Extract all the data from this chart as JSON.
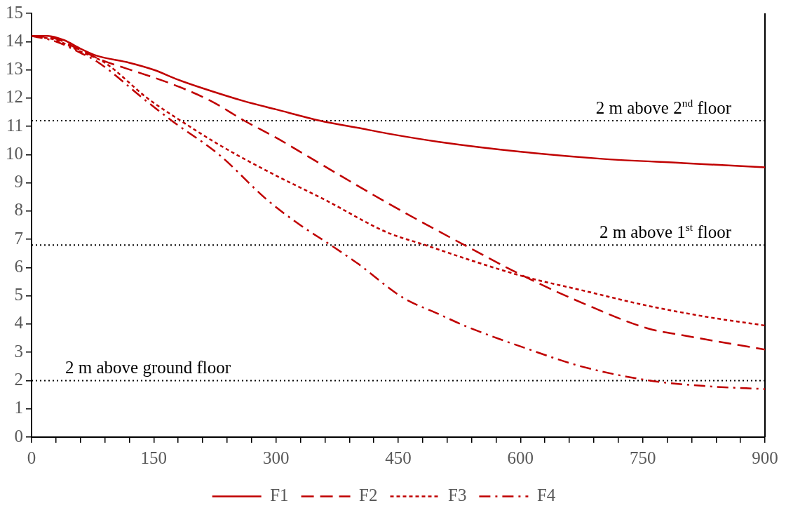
{
  "chart_data": {
    "type": "line",
    "xlim": [
      0,
      900
    ],
    "ylim": [
      0,
      15
    ],
    "xticks": [
      0,
      {
        "value": 30,
        "label": null
      },
      {
        "value": 60,
        "label": null
      },
      {
        "value": 90,
        "label": null
      },
      {
        "value": 120,
        "label": null
      },
      150,
      {
        "value": 180,
        "label": null
      },
      {
        "value": 210,
        "label": null
      },
      {
        "value": 240,
        "label": null
      },
      {
        "value": 270,
        "label": null
      },
      300,
      {
        "value": 330,
        "label": null
      },
      {
        "value": 360,
        "label": null
      },
      {
        "value": 390,
        "label": null
      },
      {
        "value": 420,
        "label": null
      },
      450,
      {
        "value": 480,
        "label": null
      },
      {
        "value": 510,
        "label": null
      },
      {
        "value": 540,
        "label": null
      },
      {
        "value": 570,
        "label": null
      },
      600,
      {
        "value": 630,
        "label": null
      },
      {
        "value": 660,
        "label": null
      },
      {
        "value": 690,
        "label": null
      },
      {
        "value": 720,
        "label": null
      },
      750,
      {
        "value": 780,
        "label": null
      },
      {
        "value": 810,
        "label": null
      },
      {
        "value": 840,
        "label": null
      },
      {
        "value": 870,
        "label": null
      },
      900
    ],
    "yticks": [
      0,
      1,
      2,
      3,
      4,
      5,
      6,
      7,
      8,
      9,
      10,
      11,
      12,
      13,
      14,
      15
    ],
    "grid": false,
    "legend": "bottom",
    "marker": "none",
    "series": [
      {
        "name": "F1",
        "color": "#c00000",
        "line_style": "solid",
        "x": [
          0,
          20,
          40,
          60,
          80,
          120,
          150,
          180,
          210,
          260,
          300,
          354,
          400,
          436,
          500,
          600,
          700,
          800,
          900
        ],
        "values": [
          14.2,
          14.2,
          14.05,
          13.75,
          13.5,
          13.25,
          13.0,
          12.65,
          12.35,
          11.9,
          11.6,
          11.2,
          10.95,
          10.75,
          10.45,
          10.1,
          9.85,
          9.7,
          9.55
        ]
      },
      {
        "name": "F2",
        "color": "#c00000",
        "line_style": "dashed",
        "x": [
          0,
          30,
          60,
          90,
          113,
          172,
          220,
          261,
          300,
          350,
          436,
          531,
          606,
          675,
          756,
          800,
          900
        ],
        "values": [
          14.2,
          14.1,
          13.7,
          13.3,
          13.08,
          12.5,
          11.9,
          11.2,
          10.6,
          9.75,
          8.3,
          6.8,
          5.67,
          4.76,
          3.85,
          3.6,
          3.1
        ]
      },
      {
        "name": "F3",
        "color": "#c00000",
        "line_style": "dotted",
        "x": [
          0,
          30,
          60,
          90,
          142,
          183,
          230,
          289,
          360,
          436,
          483,
          540,
          606,
          675,
          756,
          830,
          900
        ],
        "values": [
          14.2,
          14.05,
          13.65,
          13.25,
          12.0,
          11.2,
          10.35,
          9.42,
          8.4,
          7.25,
          6.8,
          6.25,
          5.67,
          5.2,
          4.65,
          4.25,
          3.95
        ]
      },
      {
        "name": "F4",
        "color": "#c00000",
        "line_style": "dashdot",
        "x": [
          0,
          30,
          60,
          80,
          142,
          172,
          230,
          289,
          330,
          367,
          400,
          455,
          500,
          535,
          606,
          675,
          759,
          830,
          900
        ],
        "values": [
          14.2,
          14.0,
          13.6,
          13.3,
          11.87,
          11.2,
          10.0,
          8.4,
          7.5,
          6.8,
          6.15,
          4.95,
          4.35,
          3.9,
          3.15,
          2.5,
          2.0,
          1.8,
          1.7
        ]
      }
    ],
    "ref_lines": [
      {
        "axis": "y",
        "value": 11.2,
        "label": "2 m above 2$^{nd}$ floor",
        "color": "#000000",
        "line_style": "dotted"
      },
      {
        "axis": "y",
        "value": 6.8,
        "label": "2 m above 1$^{st}$ floor",
        "color": "#000000",
        "line_style": "dotted"
      },
      {
        "axis": "y",
        "value": 2,
        "label": "2 m above ground floor",
        "color": "#000000",
        "line_style": "dotted"
      }
    ]
  }
}
